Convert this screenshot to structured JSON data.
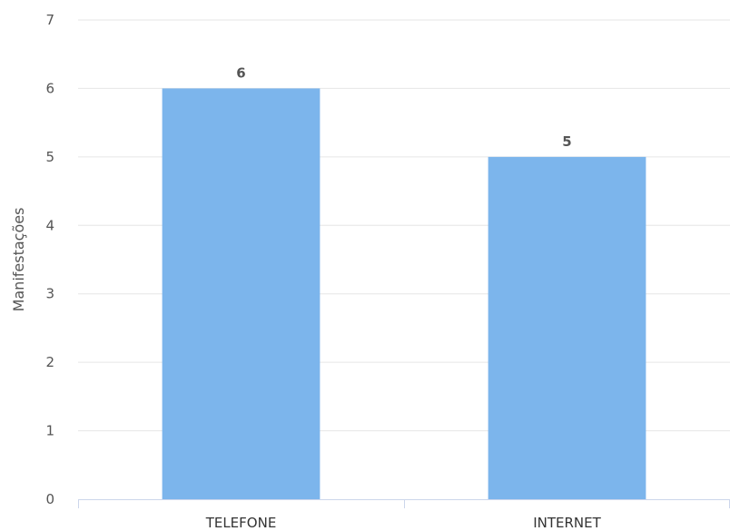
{
  "chart_data": {
    "type": "bar",
    "title": "",
    "xlabel": "",
    "ylabel": "Manifestações",
    "categories": [
      "TELEFONE",
      "INTERNET"
    ],
    "values": [
      6,
      5
    ],
    "data_labels": [
      "6",
      "5"
    ],
    "ylim": [
      0,
      7
    ],
    "yticks": [
      "0",
      "1",
      "2",
      "3",
      "4",
      "5",
      "6",
      "7"
    ],
    "grid": true,
    "legend": "none",
    "colors": {
      "bar": "#7cb5ec",
      "grid": "#e6e6e6",
      "axis": "#ccd6eb"
    }
  }
}
